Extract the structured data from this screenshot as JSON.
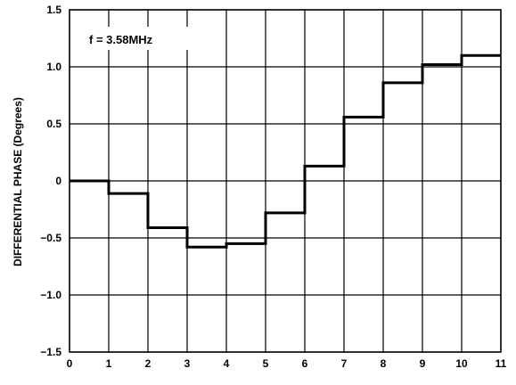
{
  "chart_data": {
    "type": "line",
    "step": true,
    "title": "",
    "annotation": "f = 3.58MHz",
    "xlabel": "",
    "ylabel": "DIFFERENTIAL PHASE (Degrees)",
    "xlim": [
      0,
      11
    ],
    "ylim": [
      -1.5,
      1.5
    ],
    "grid": true,
    "x_ticks": [
      0,
      1,
      2,
      3,
      4,
      5,
      6,
      7,
      8,
      9,
      10,
      11
    ],
    "x_tick_labels": [
      "0",
      "1",
      "2",
      "3",
      "4",
      "5",
      "6",
      "7",
      "8",
      "9",
      "10",
      "11"
    ],
    "y_ticks": [
      1.5,
      1.0,
      0.5,
      0,
      -0.5,
      -1.0,
      -1.5
    ],
    "y_tick_labels": [
      "1.5",
      "1.0",
      "0.5",
      "0",
      "−0.5",
      "−1.0",
      "−1.5"
    ],
    "series": [
      {
        "line_color": "#000000",
        "x": [
          0,
          1,
          2,
          3,
          4,
          5,
          6,
          7,
          8,
          9,
          10
        ],
        "values": [
          0.0,
          -0.11,
          -0.41,
          -0.58,
          -0.55,
          -0.28,
          0.13,
          0.56,
          0.86,
          1.02,
          1.1
        ]
      }
    ]
  }
}
